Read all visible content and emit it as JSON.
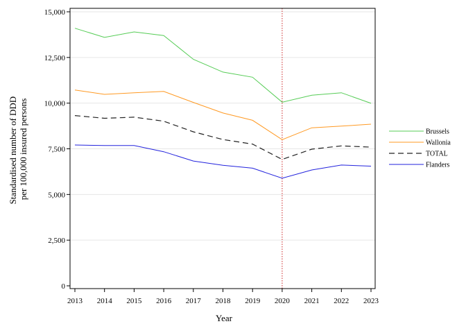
{
  "chart_data": {
    "type": "line",
    "title": "",
    "xlabel": "Year",
    "ylabel_lines": [
      "Standardised number of DDD",
      "per 100,000 insured persons"
    ],
    "x": [
      2013,
      2014,
      2015,
      2016,
      2017,
      2018,
      2019,
      2020,
      2021,
      2022,
      2023
    ],
    "x_tick_labels": [
      "2013",
      "2014",
      "2015",
      "2016",
      "2017",
      "2018",
      "2019",
      "2020",
      "2021",
      "2022",
      "2023"
    ],
    "ylim": [
      0,
      15000
    ],
    "y_ticks": [
      0,
      2500,
      5000,
      7500,
      10000,
      12500,
      15000
    ],
    "y_tick_labels": [
      "0",
      "2,500",
      "5,000",
      "7,500",
      "10,000",
      "12,500",
      "15,000"
    ],
    "grid": true,
    "legend_position": "right",
    "reference_line": {
      "x": 2020,
      "color": "#cc2222",
      "style": "dotted"
    },
    "series": [
      {
        "name": "Brussels",
        "color": "#55cc55",
        "dash": "solid",
        "values": [
          14100,
          13600,
          13900,
          13700,
          12400,
          11700,
          11420,
          10050,
          10430,
          10570,
          9990
        ]
      },
      {
        "name": "Wallonia",
        "color": "#ff9922",
        "dash": "solid",
        "values": [
          10720,
          10480,
          10570,
          10640,
          10040,
          9460,
          9060,
          8000,
          8650,
          8740,
          8850
        ]
      },
      {
        "name": "TOTAL",
        "color": "#222222",
        "dash": "dashed",
        "values": [
          9320,
          9170,
          9230,
          9010,
          8430,
          8010,
          7760,
          6920,
          7480,
          7660,
          7590
        ]
      },
      {
        "name": "Flanders",
        "color": "#2222dd",
        "dash": "solid",
        "values": [
          7710,
          7680,
          7680,
          7340,
          6830,
          6600,
          6440,
          5890,
          6340,
          6610,
          6550
        ]
      }
    ]
  }
}
